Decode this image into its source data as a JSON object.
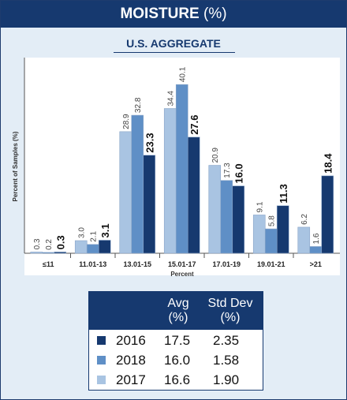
{
  "header": {
    "title": "MOISTURE",
    "unit": "(%)"
  },
  "chart_data": {
    "type": "bar",
    "title": "MOISTURE (%)",
    "subtitle": "U.S. AGGREGATE",
    "xlabel": "Percent",
    "ylabel": "Percent of Samples (%)",
    "ylim": [
      0,
      45
    ],
    "grid": false,
    "categories": [
      "≤11",
      "11.01-13",
      "13.01-15",
      "15.01-17",
      "17.01-19",
      "19.01-21",
      ">21"
    ],
    "series": [
      {
        "name": "2017",
        "color": "#a9c4e2",
        "values": [
          0.3,
          3.0,
          28.9,
          34.4,
          20.9,
          9.1,
          6.2
        ],
        "labels": [
          "0.3",
          "3.0",
          "28.9",
          "34.4",
          "20.9",
          "9.1",
          "6.2"
        ]
      },
      {
        "name": "2018",
        "color": "#5f8fc6",
        "values": [
          0.2,
          2.1,
          32.8,
          40.1,
          17.3,
          5.8,
          1.6
        ],
        "labels": [
          "0.2",
          "2.1",
          "32.8",
          "40.1",
          "17.3",
          "5.8",
          "1.6"
        ]
      },
      {
        "name": "2016",
        "color": "#16396f",
        "values": [
          0.3,
          3.1,
          23.3,
          27.6,
          16.0,
          11.3,
          18.4
        ],
        "labels": [
          "0.3",
          "3.1",
          "23.3",
          "27.6",
          "16.0",
          "11.3",
          "18.4"
        ]
      }
    ]
  },
  "legend": {
    "avg_header": "Avg",
    "avg_unit": "(%)",
    "sd_header": "Std Dev",
    "sd_unit": "(%)",
    "rows": [
      {
        "year": "2016",
        "avg": "17.5",
        "sd": "2.35",
        "color": "#16396f"
      },
      {
        "year": "2018",
        "avg": "16.0",
        "sd": "1.58",
        "color": "#5f8fc6"
      },
      {
        "year": "2017",
        "avg": "16.6",
        "sd": "1.90",
        "color": "#a9c4e2"
      }
    ]
  }
}
